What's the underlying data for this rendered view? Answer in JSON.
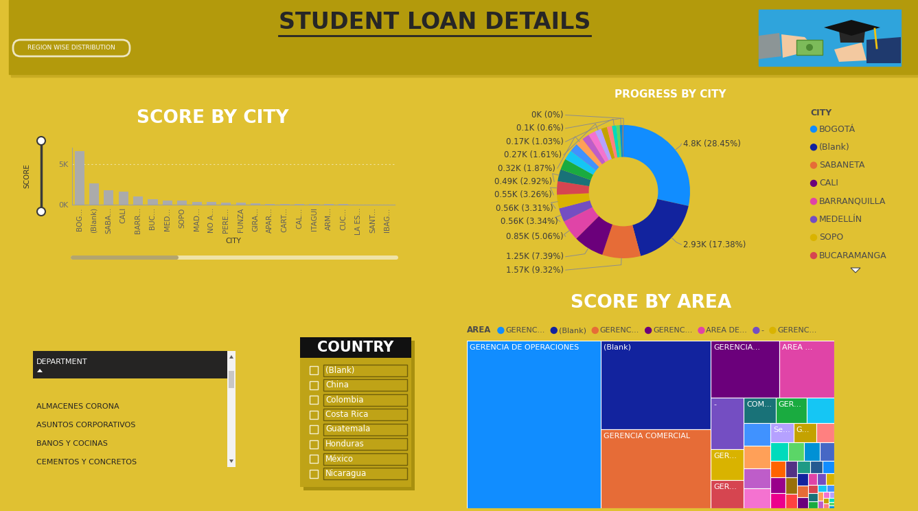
{
  "header": {
    "title": "STUDENT LOAN DETAILS",
    "button": "REGION WISE DISTRIBUTION"
  },
  "chart_data": [
    {
      "type": "bar",
      "title": "SCORE BY CITY",
      "x_label": "CITY",
      "y_label": "SCORE",
      "categories": [
        "BOG...",
        "(Blank)",
        "SABA...",
        "CALI",
        "BARR...",
        "BUC...",
        "MED...",
        "SOPO",
        "MAD...",
        "NO A...",
        "PERE...",
        "FUNZA",
        "GIRA...",
        "APAR...",
        "CART...",
        "CAL...",
        "ITAGUI",
        "ARM...",
        "CUC...",
        "LA ES...",
        "SANT...",
        "IBAG..."
      ],
      "values": [
        6550,
        2600,
        1800,
        1640,
        1030,
        690,
        520,
        520,
        340,
        340,
        260,
        260,
        170,
        100,
        100,
        90,
        80,
        60,
        50,
        40,
        30,
        30
      ],
      "color": "#ABABAB",
      "ylim": [
        0,
        7000
      ],
      "yticks": [
        {
          "value": 0,
          "label": "0K"
        },
        {
          "value": 5000,
          "label": "5K"
        }
      ],
      "grid": true
    },
    {
      "type": "pie",
      "title": "PROGRESS BY CITY",
      "legend_title": "CITY",
      "categories": [
        "BOGOTÁ",
        "(Blank)",
        "SABANETA",
        "CALI",
        "BARRANQUILLA",
        "MEDELLÍN",
        "SOPO",
        "BUCARAMANGA",
        null,
        null,
        null,
        null,
        null,
        null,
        null,
        null,
        null,
        null,
        null,
        null,
        null,
        null,
        null,
        null
      ],
      "values": [
        4802,
        2934,
        1573,
        1247,
        854,
        564,
        559,
        550,
        493,
        450,
        400,
        360,
        316,
        300,
        290,
        272,
        240,
        210,
        174,
        140,
        101,
        40,
        11,
        0
      ],
      "value_labels": [
        "4.8K (28.45%)",
        "2.93K (17.38%)",
        "1.57K (9.32%)",
        "1.25K (7.39%)",
        "0.85K (5.06%)",
        "0.56K (3.34%)",
        "0.56K (3.31%)",
        "0.55K (3.26%)",
        "0.49K (2.92%)",
        null,
        null,
        null,
        "0.32K (1.87%)",
        null,
        null,
        "0.27K (1.61%)",
        null,
        null,
        "0.17K (1.03%)",
        null,
        "0.1K (0.6%)",
        null,
        null,
        "0K (0%)"
      ],
      "colors": [
        "#118DFF",
        "#12239E",
        "#E66C37",
        "#6B007B",
        "#E044A7",
        "#744EC2",
        "#D9B300",
        "#D64550",
        "#197278",
        "#1AAB40",
        "#15C6F4",
        "#4092FF",
        "#FFA058",
        "#BE5DC9",
        "#F472D0",
        "#B5A1FF",
        "#C4A200",
        "#FF8080",
        "#00DBBC",
        "#5BD667",
        "#0091D5",
        "#4668C5",
        "#FF6300",
        "#99008A"
      ]
    },
    {
      "type": "treemap",
      "title": "SCORE BY AREA",
      "legend_title": "AREA",
      "legend_entries": [
        "GERENC...",
        "(Blank)",
        "GERENC...",
        "GERENC...",
        "AREA DE...",
        "-",
        "GERENC..."
      ],
      "categories": [
        "GERENCIA DE OPERACIONES",
        "(Blank)",
        "GERENCIA COMERCIAL",
        "GERENCIA...",
        "AREA ...",
        "-",
        "GER...",
        "GER...",
        "COM...",
        "GER...",
        null,
        null,
        null,
        null,
        null,
        "Se...",
        "G...",
        null,
        null,
        null,
        null,
        null,
        null,
        null,
        null,
        null,
        null,
        null,
        null,
        null,
        null,
        null,
        null,
        null,
        null,
        null,
        null,
        null,
        null,
        null,
        null,
        null,
        null,
        null,
        null,
        null,
        null,
        null,
        null,
        null,
        null
      ],
      "values": [
        6310,
        2750,
        2450,
        1100,
        885,
        470,
        287,
        260,
        226,
        220,
        195,
        172,
        168,
        152,
        148,
        124,
        122,
        96,
        91,
        85,
        80,
        75,
        70,
        66,
        62,
        58,
        54,
        50,
        47,
        44,
        41,
        38,
        35,
        32,
        30,
        28,
        26,
        24,
        22,
        20,
        18,
        16,
        14,
        12,
        10,
        9,
        8,
        7,
        6,
        5,
        4
      ],
      "colors": [
        "#118DFF",
        "#12239E",
        "#E66C37",
        "#6B007B",
        "#E044A7",
        "#744EC2",
        "#D9B300",
        "#D64550",
        "#197278",
        "#1AAB40",
        "#15C6F4",
        "#4092FF",
        "#FFA058",
        "#BE5DC9",
        "#F472D0",
        "#B5A1FF",
        "#C4A200",
        "#FF8080",
        "#00DBBC",
        "#5BD667",
        "#0091D5",
        "#4668C5",
        "#FF6300",
        "#99008A",
        "#EC008C",
        "#533285",
        "#99700A",
        "#FF4141",
        "#1F9A85",
        "#255A91",
        "#118DFF",
        "#12239E",
        "#E66C37",
        "#6B007B",
        "#E044A7",
        "#744EC2",
        "#D9B300",
        "#D64550",
        "#197278",
        "#1AAB40",
        "#15C6F4",
        "#4092FF",
        "#FFA058",
        "#BE5DC9",
        "#F472D0",
        "#B5A1FF",
        "#C4A200",
        "#FF8080",
        "#00DBBC",
        "#5BD667",
        "#0091D5"
      ]
    }
  ],
  "slicers": [
    {
      "title": "DEPARTMENT",
      "items": [
        "ALMACENES CORONA",
        "ASUNTOS CORPORATIVOS",
        "BANOS Y COCINAS",
        "CEMENTOS Y CONCRETOS"
      ]
    },
    {
      "title": "COUNTRY",
      "items": [
        "(Blank)",
        "China",
        "Colombia",
        "Costa Rica",
        "Guatemala",
        "Honduras",
        "México",
        "Nicaragua"
      ]
    }
  ]
}
